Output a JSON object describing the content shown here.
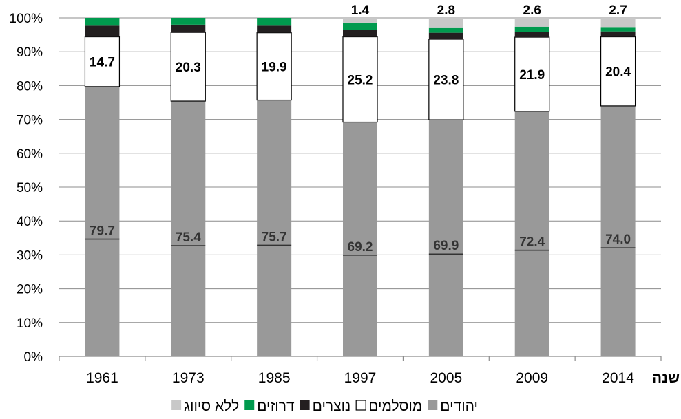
{
  "chart_data": {
    "type": "bar",
    "stacked": true,
    "xlabel": "שנה",
    "ylim": [
      0,
      100
    ],
    "yticks": [
      "0%",
      "10%",
      "20%",
      "30%",
      "40%",
      "50%",
      "60%",
      "70%",
      "80%",
      "90%",
      "100%"
    ],
    "categories": [
      "1961",
      "1973",
      "1985",
      "1997",
      "2005",
      "2009",
      "2014"
    ],
    "series": [
      {
        "name": "יהודים",
        "color": "#999999",
        "values": [
          79.7,
          75.4,
          75.7,
          69.2,
          69.9,
          72.4,
          74.0
        ],
        "labels": [
          "79.7",
          "75.4",
          "75.7",
          "69.2",
          "69.9",
          "72.4",
          "74.0"
        ]
      },
      {
        "name": "מוסלמים",
        "color": "#ffffff",
        "values": [
          14.7,
          20.3,
          19.9,
          25.2,
          23.8,
          21.9,
          20.4
        ],
        "labels": [
          "14.7",
          "20.3",
          "19.9",
          "25.2",
          "23.8",
          "21.9",
          "20.4"
        ]
      },
      {
        "name": "נוצרים",
        "color": "#231f20",
        "values": [
          3.3,
          2.3,
          2.1,
          2.1,
          1.9,
          1.6,
          1.6
        ]
      },
      {
        "name": "דרוזים",
        "color": "#009a4e",
        "values": [
          2.3,
          2.0,
          2.3,
          2.1,
          1.6,
          1.5,
          1.3
        ]
      },
      {
        "name": "ללא סיווג",
        "color": "#c8c8c8",
        "values": [
          0,
          0,
          0,
          1.4,
          2.8,
          2.6,
          2.7
        ],
        "labels": [
          "",
          "",
          "",
          "1.4",
          "2.8",
          "2.6",
          "2.7"
        ]
      }
    ],
    "grid": true,
    "legend_position": "bottom"
  }
}
